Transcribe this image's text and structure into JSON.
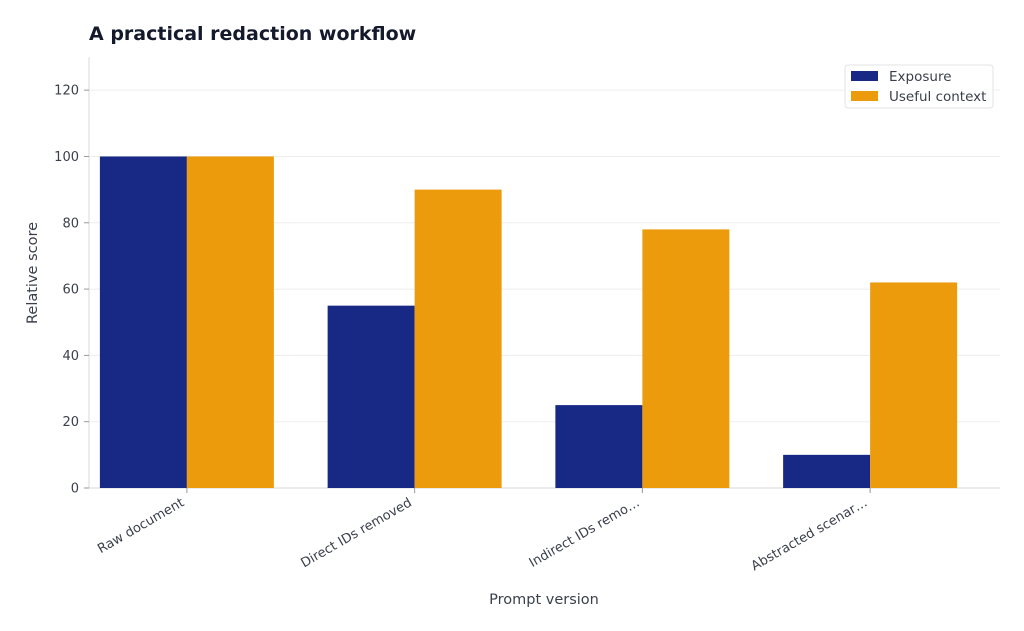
{
  "chart_data": {
    "type": "bar",
    "title": "A practical redaction workflow",
    "xlabel": "Prompt version",
    "ylabel": "Relative score",
    "categories": [
      "Raw document",
      "Direct IDs removed",
      "Indirect IDs remo…",
      "Abstracted scenar…"
    ],
    "series": [
      {
        "name": "Exposure",
        "color": "#172985",
        "values": [
          100,
          55,
          25,
          10
        ]
      },
      {
        "name": "Useful context",
        "color": "#eb9b0c",
        "values": [
          100,
          90,
          78,
          62
        ]
      }
    ],
    "ylim": [
      0,
      130
    ],
    "yticks": [
      0,
      20,
      40,
      60,
      80,
      100,
      120
    ],
    "grid": true,
    "legend": "top-right"
  }
}
